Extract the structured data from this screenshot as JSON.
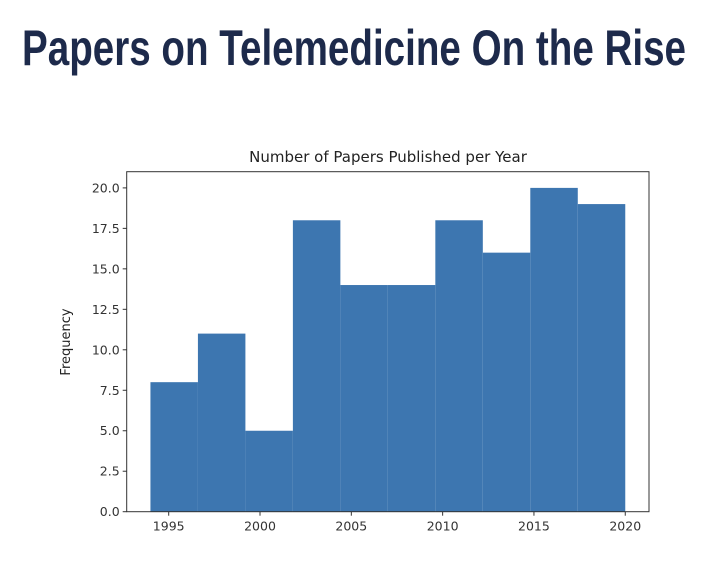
{
  "headline": "Papers on Telemedicine On the Rise",
  "chart_data": {
    "type": "bar",
    "subtype": "histogram",
    "title": "Number of Papers Published per Year",
    "xlabel": "",
    "ylabel": "Frequency",
    "bin_edges": [
      1994,
      1996.6,
      1999.2,
      2001.8,
      2004.4,
      2007,
      2009.6,
      2012.2,
      2014.8,
      2017.4,
      2020
    ],
    "values": [
      8,
      11,
      5,
      18,
      14,
      14,
      18,
      16,
      20,
      19
    ],
    "xlim": [
      1992.7,
      2021.3
    ],
    "ylim": [
      0,
      21
    ],
    "xticks": [
      1995,
      2000,
      2005,
      2010,
      2015,
      2020
    ],
    "xtick_labels": [
      "1995",
      "2000",
      "2005",
      "2010",
      "2015",
      "2020"
    ],
    "yticks": [
      0,
      2.5,
      5,
      7.5,
      10,
      12.5,
      15,
      17.5,
      20
    ],
    "ytick_labels": [
      "0.0",
      "2.5",
      "5.0",
      "7.5",
      "10.0",
      "12.5",
      "15.0",
      "17.5",
      "20.0"
    ],
    "grid": false,
    "bar_color": "#3d76b0",
    "headline_color": "#1d2a4b"
  }
}
